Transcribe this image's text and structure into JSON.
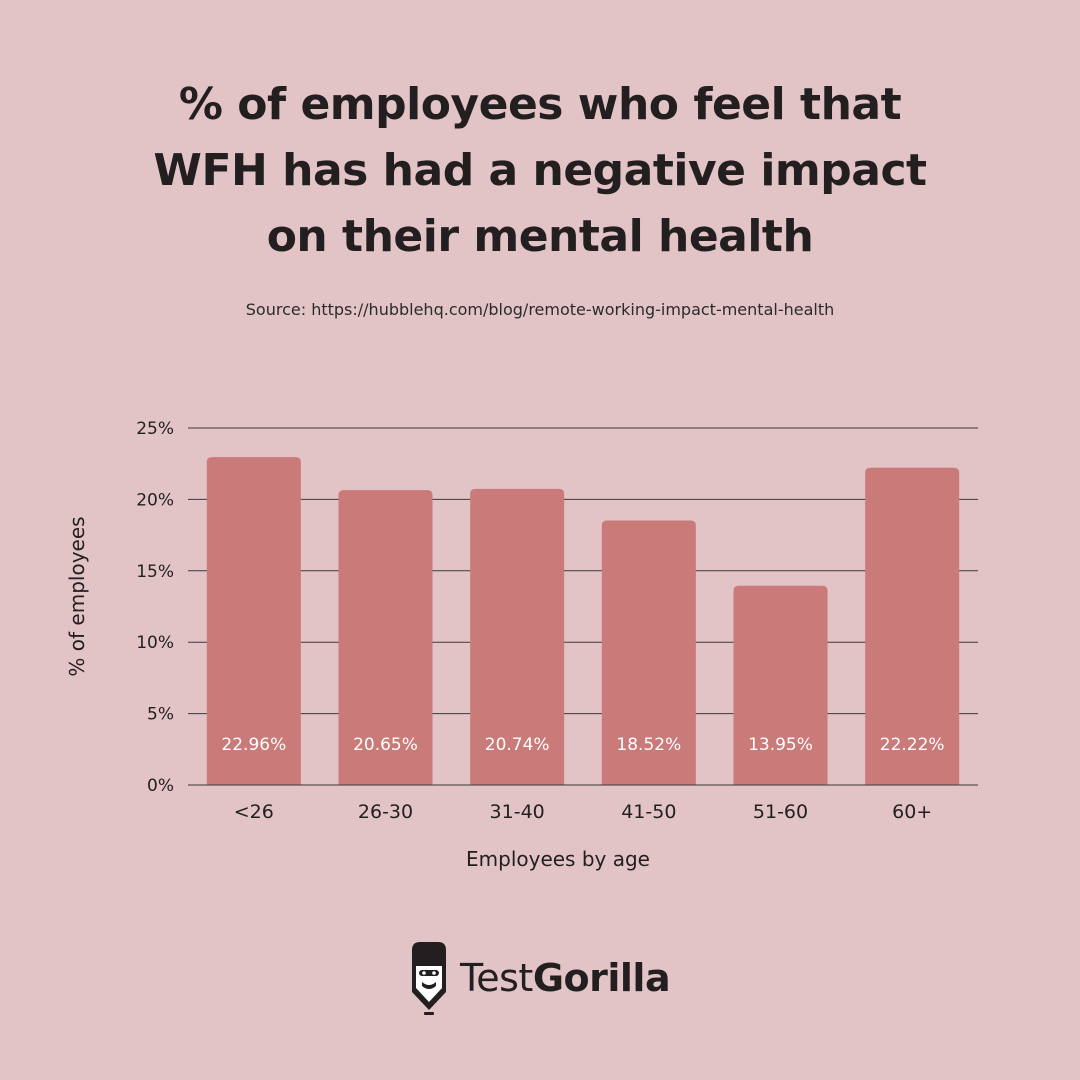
{
  "header": {
    "title_lines": [
      "% of employees who feel that",
      "WFH has had a negative impact",
      "on their mental health"
    ],
    "source": "Source: https://hubblehq.com/blog/remote-working-impact-mental-health"
  },
  "chart_data": {
    "type": "bar",
    "title": "% of employees who feel that WFH has had a negative impact on their mental health",
    "categories": [
      "<26",
      "26-30",
      "31-40",
      "41-50",
      "51-60",
      "60+"
    ],
    "values": [
      22.96,
      20.65,
      20.74,
      18.52,
      13.95,
      22.22
    ],
    "bar_labels": [
      "22.96%",
      "20.65%",
      "20.74%",
      "18.52%",
      "13.95%",
      "22.22%"
    ],
    "xlabel": "Employees by age",
    "ylabel": "% of employees",
    "ylim": [
      0,
      25
    ],
    "yticks": [
      0,
      5,
      10,
      15,
      20,
      25
    ],
    "ytick_labels": [
      "0%",
      "5%",
      "10%",
      "15%",
      "20%",
      "25%"
    ],
    "grid": true,
    "bar_color": "#c97a79",
    "label_color": "#ffffff"
  },
  "brand": {
    "name_regular": "Test",
    "name_bold": "Gorilla",
    "icon": "gorilla-icon"
  },
  "colors": {
    "background": "#e2c3c6",
    "text": "#231f20",
    "gridline": "#3a3a3a"
  }
}
